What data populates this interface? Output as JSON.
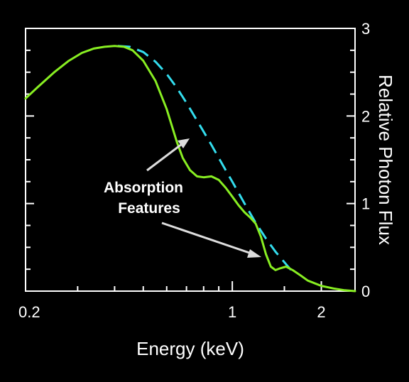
{
  "chart_data": {
    "type": "line",
    "title": "",
    "xlabel": "Energy (keV)",
    "ylabel": "Relative Photon Flux",
    "xscale": "log",
    "xlim": [
      0.2,
      2.6
    ],
    "ylim": [
      0,
      3
    ],
    "x_ticks": [
      {
        "value": 0.2,
        "label": "0.2"
      },
      {
        "value": 1,
        "label": "1"
      },
      {
        "value": 2,
        "label": "2"
      }
    ],
    "y_ticks": [
      {
        "value": 0,
        "label": "0"
      },
      {
        "value": 1,
        "label": "1"
      },
      {
        "value": 2,
        "label": "2"
      },
      {
        "value": 3,
        "label": "3"
      }
    ],
    "grid": false,
    "series": [
      {
        "style": "dashed",
        "color": "#33ddee",
        "x": [
          0.41,
          0.45,
          0.5,
          0.55,
          0.6,
          0.65,
          0.7,
          0.75,
          0.8,
          0.85,
          0.9,
          0.95,
          1.0,
          1.1,
          1.2,
          1.3,
          1.4,
          1.5,
          1.58
        ],
        "y": [
          2.8,
          2.79,
          2.73,
          2.62,
          2.48,
          2.32,
          2.15,
          1.98,
          1.82,
          1.67,
          1.52,
          1.38,
          1.25,
          1.0,
          0.78,
          0.6,
          0.45,
          0.33,
          0.24
        ]
      },
      {
        "style": "solid",
        "color": "#88ee22",
        "x": [
          0.2,
          0.22,
          0.25,
          0.28,
          0.31,
          0.34,
          0.37,
          0.4,
          0.43,
          0.46,
          0.5,
          0.55,
          0.6,
          0.65,
          0.68,
          0.72,
          0.76,
          0.8,
          0.85,
          0.9,
          0.95,
          1.0,
          1.05,
          1.1,
          1.15,
          1.2,
          1.25,
          1.3,
          1.35,
          1.4,
          1.45,
          1.52,
          1.6,
          1.7,
          1.8,
          2.0,
          2.2,
          2.4,
          2.6
        ],
        "y": [
          2.2,
          2.33,
          2.5,
          2.63,
          2.72,
          2.77,
          2.79,
          2.8,
          2.79,
          2.75,
          2.63,
          2.4,
          2.08,
          1.7,
          1.52,
          1.38,
          1.31,
          1.3,
          1.31,
          1.27,
          1.18,
          1.08,
          0.98,
          0.9,
          0.84,
          0.77,
          0.62,
          0.42,
          0.28,
          0.24,
          0.26,
          0.28,
          0.24,
          0.18,
          0.12,
          0.06,
          0.03,
          0.01,
          0.0
        ]
      }
    ],
    "annotations": [
      {
        "lines": [
          "Absorption",
          "Features"
        ]
      }
    ]
  }
}
